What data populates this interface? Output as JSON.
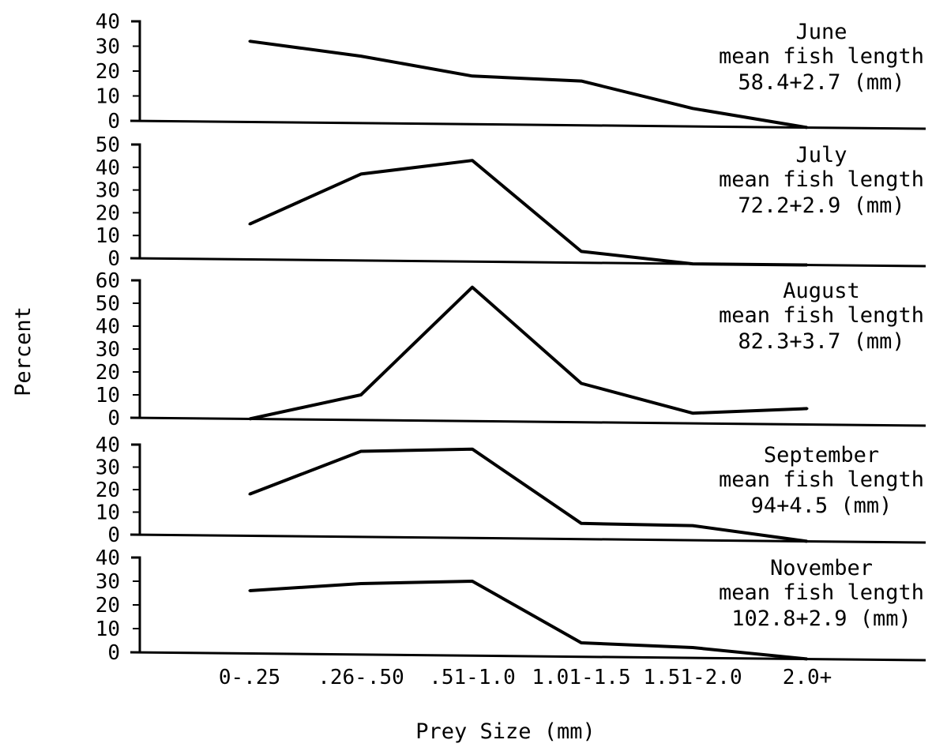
{
  "chart_data": {
    "type": "line",
    "xlabel": "Prey Size (mm)",
    "ylabel": "Percent",
    "categories": [
      "0-.25",
      ".26-.50",
      ".51-1.0",
      "1.01-1.5",
      "1.51-2.0",
      "2.0+"
    ],
    "panels": [
      {
        "month": "June",
        "desc": "mean fish length",
        "length": "58.4+2.7 (mm)",
        "yticks": [
          40,
          30,
          20,
          10,
          0
        ],
        "ylim": [
          0,
          40
        ],
        "values": [
          32,
          26,
          18,
          16,
          5,
          0
        ]
      },
      {
        "month": "July",
        "desc": "mean fish length",
        "length": "72.2+2.9 (mm)",
        "yticks": [
          50,
          40,
          30,
          20,
          10,
          0
        ],
        "ylim": [
          0,
          50
        ],
        "values": [
          15,
          37,
          43,
          3,
          0,
          0
        ]
      },
      {
        "month": "August",
        "desc": "mean fish length",
        "length": "82.3+3.7 (mm)",
        "yticks": [
          60,
          50,
          40,
          30,
          20,
          10,
          0
        ],
        "ylim": [
          0,
          60
        ],
        "values": [
          0,
          10,
          57,
          15,
          2,
          4
        ]
      },
      {
        "month": "September",
        "desc": "mean fish length",
        "length": "94+4.5 (mm)",
        "yticks": [
          40,
          30,
          20,
          10,
          0
        ],
        "ylim": [
          0,
          40
        ],
        "values": [
          18,
          37,
          38,
          5,
          4,
          0
        ]
      },
      {
        "month": "November",
        "desc": "mean fish length",
        "length": "102.8+2.9 (mm)",
        "yticks": [
          40,
          30,
          20,
          10,
          0
        ],
        "ylim": [
          0,
          40
        ],
        "values": [
          26,
          29,
          30,
          4,
          2,
          0
        ]
      }
    ]
  }
}
